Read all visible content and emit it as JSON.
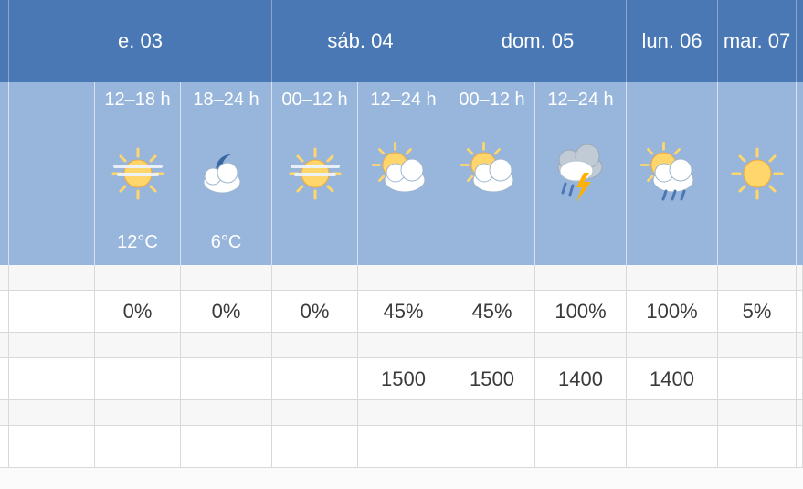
{
  "colors": {
    "header_bg": "#4a78b5",
    "sky_bg": "#98b6dc",
    "header_text": "#ffffff",
    "cell_border_light": "rgba(255,255,255,0.6)",
    "data_border": "#d9d9d9",
    "data_text": "#3a3a3a",
    "sun_fill": "#ffd66b",
    "sun_stroke": "#f2a93b",
    "cloud_fill": "#ffffff",
    "cloud_stroke": "#9cb5cf",
    "cloud_dark_fill": "#c0cbd6",
    "moon_fill": "#3a66a0",
    "rain_fill": "#4a78b5",
    "bolt_fill": "#ffb000",
    "fog_stroke": "#dfe9f3"
  },
  "days": [
    {
      "label": "e. 03",
      "span": 3
    },
    {
      "label": "sáb. 04",
      "span": 2
    },
    {
      "label": "dom. 05",
      "span": 2
    },
    {
      "label": "lun. 06",
      "span": 1
    },
    {
      "label": "mar. 07",
      "span": 1
    }
  ],
  "columns": [
    {
      "timeband": "",
      "icon": "blank",
      "temp": "",
      "precip": "",
      "alt": ""
    },
    {
      "timeband": "12–18 h",
      "icon": "sun-fog",
      "temp": "12°C",
      "precip": "0%",
      "alt": ""
    },
    {
      "timeband": "18–24 h",
      "icon": "moon-cloud",
      "temp": "6°C",
      "precip": "0%",
      "alt": ""
    },
    {
      "timeband": "00–12 h",
      "icon": "sun-fog",
      "temp": "",
      "precip": "0%",
      "alt": ""
    },
    {
      "timeband": "12–24 h",
      "icon": "sun-cloud",
      "temp": "",
      "precip": "45%",
      "alt": "1500"
    },
    {
      "timeband": "00–12 h",
      "icon": "sun-cloud",
      "temp": "",
      "precip": "45%",
      "alt": "1500"
    },
    {
      "timeband": "12–24 h",
      "icon": "storm",
      "temp": "",
      "precip": "100%",
      "alt": "1400"
    },
    {
      "timeband": "",
      "icon": "sun-cloud-rain",
      "temp": "",
      "precip": "100%",
      "alt": "1400"
    },
    {
      "timeband": "",
      "icon": "sun",
      "temp": "",
      "precip": "5%",
      "alt": ""
    }
  ],
  "font_sizes": {
    "header": 22,
    "timeband": 20,
    "temp": 20,
    "data": 22
  }
}
